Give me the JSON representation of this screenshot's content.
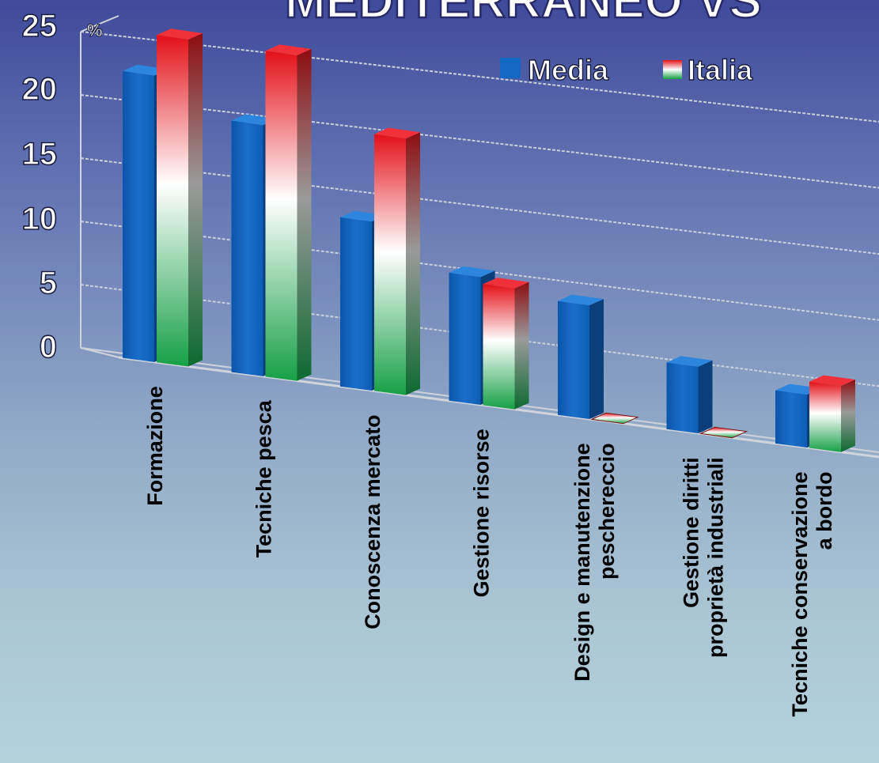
{
  "chart_data": {
    "type": "bar",
    "title": "MEDITERRANEO VS",
    "ylabel": "%",
    "ylim": [
      0,
      25
    ],
    "yticks": [
      0,
      5,
      10,
      15,
      20,
      25
    ],
    "grid": true,
    "legend_position": "top-right",
    "categories": [
      "Formazione",
      "Tecniche pesca",
      "Conoscenza mercato",
      "Gestione risorse",
      "Design e manutenzione\npeschereccio",
      "Gestione diritti\nproprietà industriali",
      "Tecniche conservazione\na bordo"
    ],
    "series": [
      {
        "name": "Media",
        "values": [
          21,
          18.5,
          12.5,
          9.5,
          8.5,
          5,
          4
        ]
      },
      {
        "name": "Italia",
        "values": [
          24,
          24,
          19,
          9,
          0,
          0,
          5
        ]
      }
    ]
  },
  "colors": {
    "media": "#1467c2",
    "italia_top": "#e8141c",
    "italia_mid": "#ffffff",
    "italia_bottom": "#1aa84a"
  }
}
